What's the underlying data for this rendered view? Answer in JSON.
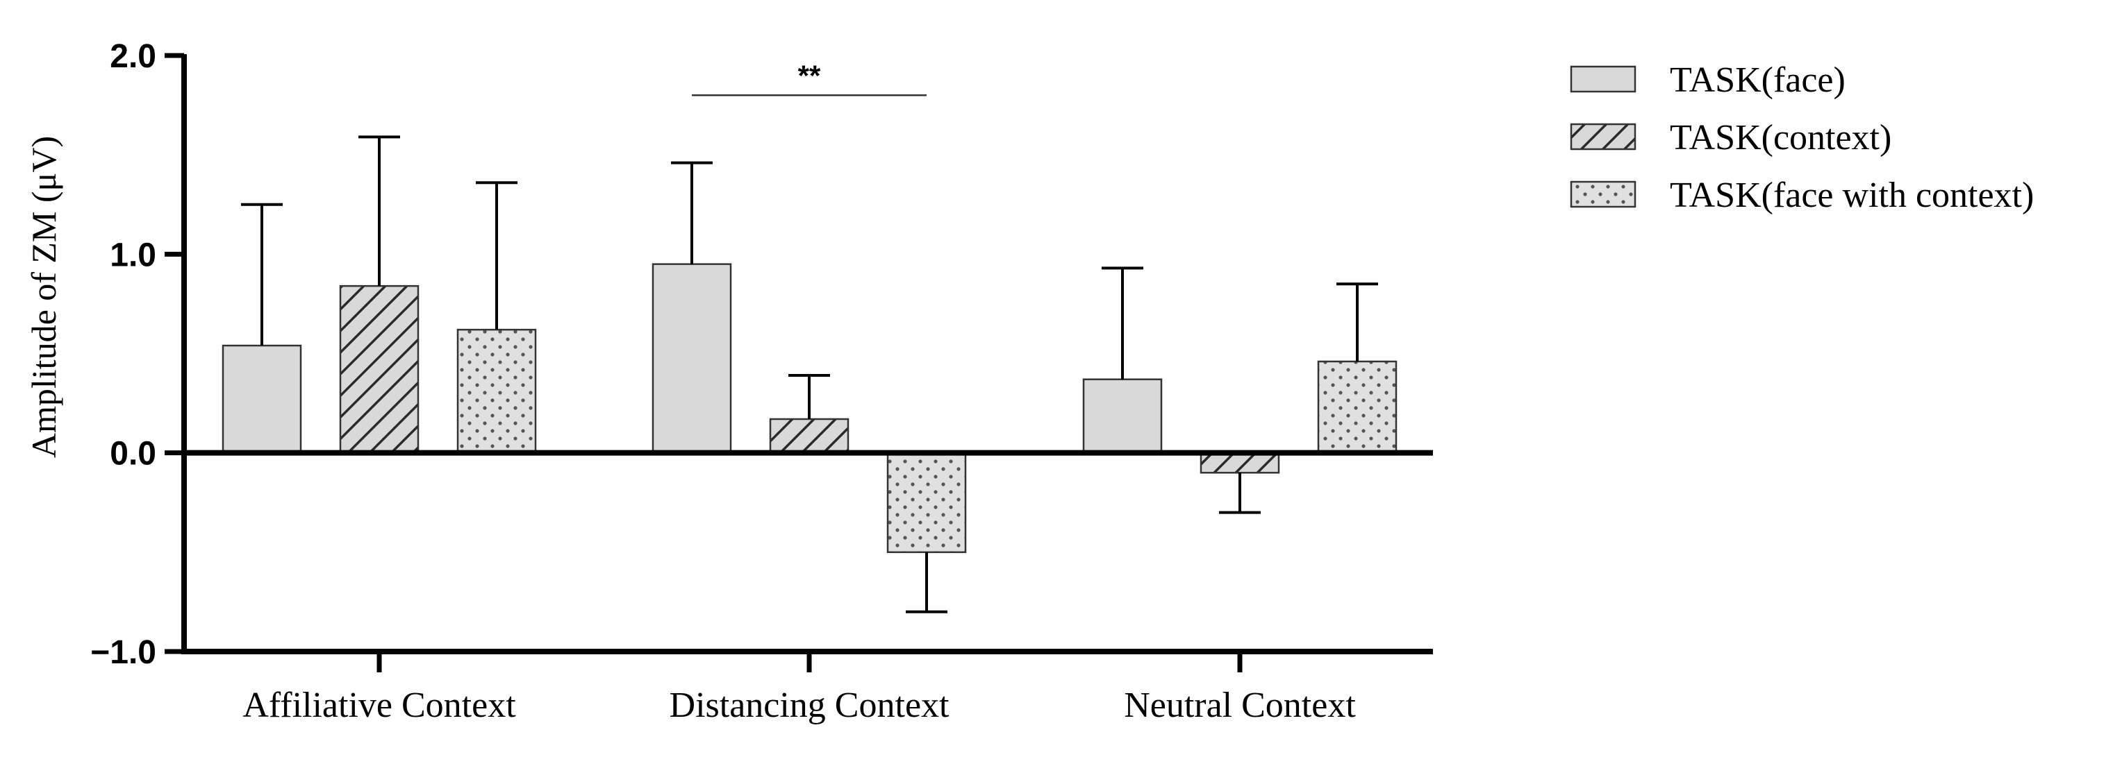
{
  "chart_data": {
    "type": "bar",
    "title": "",
    "xlabel": "",
    "ylabel": "Amplitude of ZM (μV)",
    "ylim": [
      -1.0,
      2.0
    ],
    "yticks": [
      "2.0",
      "1.0",
      "0.0",
      "−1.0"
    ],
    "ytick_values": [
      2.0,
      1.0,
      0.0,
      -1.0
    ],
    "categories": [
      "Affiliative Context",
      "Distancing Context",
      "Neutral Context"
    ],
    "series": [
      {
        "name": "TASK(face)",
        "pattern": "solid",
        "fill": "#d9d9d9",
        "values": [
          0.54,
          0.95,
          0.37
        ],
        "errors": [
          0.71,
          0.51,
          0.56
        ]
      },
      {
        "name": "TASK(context)",
        "pattern": "hatch",
        "fill": "#d9d9d9",
        "values": [
          0.84,
          0.17,
          -0.1
        ],
        "errors": [
          0.75,
          0.22,
          0.2
        ]
      },
      {
        "name": "TASK(face with context)",
        "pattern": "dots",
        "fill": "#e0e0e0",
        "values": [
          0.62,
          -0.5,
          0.46
        ],
        "errors": [
          0.74,
          0.3,
          0.39
        ]
      }
    ],
    "annotations": [
      {
        "text": "**",
        "category": "Distancing Context",
        "from_series": 0,
        "to_series": 2,
        "y": 1.8
      }
    ],
    "legend_position": "top-right",
    "grid": false
  }
}
